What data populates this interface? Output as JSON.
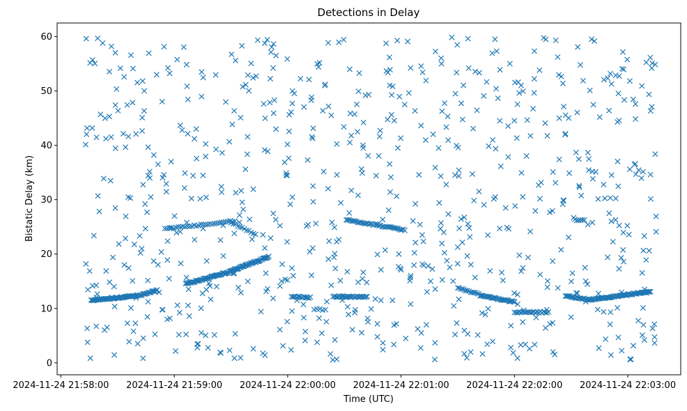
{
  "chart_data": {
    "type": "scatter",
    "title": "Detections in Delay",
    "xlabel": "Time (UTC)",
    "ylabel": "Bistatic Delay (km)",
    "marker": "x",
    "color": "#1f77b4",
    "xlim": [
      "2024-11-24 21:57:58",
      "2024-11-24 22:03:28"
    ],
    "ylim": [
      -2.2,
      62.5
    ],
    "xticks": [
      {
        "t": "2024-11-24 21:58:00",
        "label": "2024-11-24 21:58:00"
      },
      {
        "t": "2024-11-24 21:59:00",
        "label": "2024-11-24 21:59:00"
      },
      {
        "t": "2024-11-24 22:00:00",
        "label": "2024-11-24 22:00:00"
      },
      {
        "t": "2024-11-24 22:01:00",
        "label": "2024-11-24 22:01:00"
      },
      {
        "t": "2024-11-24 22:02:00",
        "label": "2024-11-24 22:02:00"
      },
      {
        "t": "2024-11-24 22:03:00",
        "label": "2024-11-24 22:03:00"
      }
    ],
    "yticks": [
      0,
      10,
      20,
      30,
      40,
      50,
      60
    ],
    "grid": false,
    "tracks": [
      {
        "t_start": "2024-11-24 21:58:16",
        "t_end": "2024-11-24 21:58:40",
        "y_start": 11.5,
        "y_end": 12.3,
        "n": 55
      },
      {
        "t_start": "2024-11-24 21:58:40",
        "t_end": "2024-11-24 21:58:51",
        "y_start": 12.3,
        "y_end": 13.3,
        "n": 20
      },
      {
        "t_start": "2024-11-24 21:59:06",
        "t_end": "2024-11-24 21:59:30",
        "y_start": 14.5,
        "y_end": 16.8,
        "n": 50
      },
      {
        "t_start": "2024-11-24 21:59:30",
        "t_end": "2024-11-24 21:59:50",
        "y_start": 16.9,
        "y_end": 19.5,
        "n": 45
      },
      {
        "t_start": "2024-11-24 21:58:55",
        "t_end": "2024-11-24 21:59:32",
        "y_start": 24.6,
        "y_end": 26.1,
        "n": 32
      },
      {
        "t_start": "2024-11-24 21:59:30",
        "t_end": "2024-11-24 21:59:43",
        "y_start": 25.8,
        "y_end": 23.6,
        "n": 12
      },
      {
        "t_start": "2024-11-24 22:00:02",
        "t_end": "2024-11-24 22:00:12",
        "y_start": 12.2,
        "y_end": 12.0,
        "n": 15
      },
      {
        "t_start": "2024-11-24 22:00:14",
        "t_end": "2024-11-24 22:00:20",
        "y_start": 9.8,
        "y_end": 9.8,
        "n": 5
      },
      {
        "t_start": "2024-11-24 22:00:24",
        "t_end": "2024-11-24 22:00:42",
        "y_start": 12.2,
        "y_end": 12.1,
        "n": 28
      },
      {
        "t_start": "2024-11-24 22:00:31",
        "t_end": "2024-11-24 22:01:02",
        "y_start": 26.3,
        "y_end": 24.4,
        "n": 42
      },
      {
        "t_start": "2024-11-24 22:01:30",
        "t_end": "2024-11-24 22:01:42",
        "y_start": 13.8,
        "y_end": 12.5,
        "n": 15
      },
      {
        "t_start": "2024-11-24 22:01:42",
        "t_end": "2024-11-24 22:02:00",
        "y_start": 12.4,
        "y_end": 11.2,
        "n": 32
      },
      {
        "t_start": "2024-11-24 22:02:00",
        "t_end": "2024-11-24 22:02:18",
        "y_start": 9.3,
        "y_end": 9.3,
        "n": 22
      },
      {
        "t_start": "2024-11-24 22:02:27",
        "t_end": "2024-11-24 22:02:40",
        "y_start": 12.3,
        "y_end": 11.6,
        "n": 22
      },
      {
        "t_start": "2024-11-24 22:02:40",
        "t_end": "2024-11-24 22:03:12",
        "y_start": 11.6,
        "y_end": 13.1,
        "n": 65
      },
      {
        "t_start": "2024-11-24 22:02:32",
        "t_end": "2024-11-24 22:02:37",
        "y_start": 26.3,
        "y_end": 26.3,
        "n": 6
      }
    ],
    "noise": {
      "n": 760,
      "t_start": "2024-11-24 21:58:13",
      "t_end": "2024-11-24 22:03:15",
      "y_min": 0.5,
      "y_max": 60.0,
      "seed": 1337
    }
  }
}
